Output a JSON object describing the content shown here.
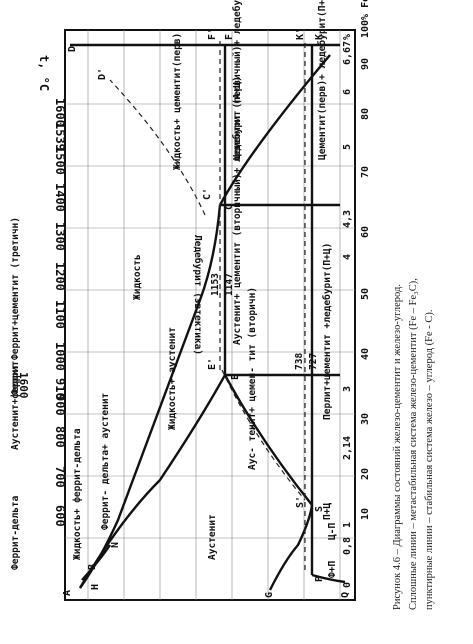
{
  "diagram": {
    "title_axis": "t, °C",
    "x_unit": "%",
    "x_unit_cementite": "100% Fe₃C",
    "temp_ticks": [
      "1600",
      "1539",
      "1500",
      "1400",
      "1300",
      "1200",
      "1100",
      "1000",
      "910",
      "900",
      "800",
      "700",
      "600"
    ],
    "x_ticks_c": [
      "0",
      "0,8",
      "1",
      "2,14",
      "3",
      "4",
      "4,3",
      "5",
      "6",
      "6,67"
    ],
    "x_ticks_fe3c": [
      "10",
      "20",
      "30",
      "40",
      "50",
      "60",
      "70",
      "80",
      "90"
    ],
    "side_labels": [
      "Феррит-дельта",
      "Аустенит+феррит",
      "Феррит",
      "Феррит+цементит (третичн)"
    ],
    "point_labels": [
      "A",
      "B",
      "H",
      "N",
      "D",
      "D'",
      "E",
      "E'",
      "C",
      "C'",
      "F",
      "F'",
      "G",
      "S",
      "S'",
      "P",
      "Q",
      "K",
      "K'"
    ],
    "region_labels": {
      "liquid": "Жидкость",
      "liquid_ferrite_delta": "Жидкость+ феррит-дельта",
      "ferrite_delta_austenite": "Феррит- дельта+ аустенит",
      "liquid_austenite": "Жидкость+ аустенит",
      "liquid_cementite": "Жидкость+ цементит(перв)",
      "austenite": "Аустенит",
      "austenite_cementite_secondary": "Аус- тенит+ цемен- тит (вторичн)",
      "austenite_cementite_ledeburite": "Аустенит+ цементит (вторичный)+ ледебурит (А+Ц)",
      "cementite_ledeburite": "Цементит (первичный)+ ледебурит (А+Ц)",
      "ledeburite_eutectic": "Ледебурит (эвтектика)",
      "ferrite_pearlite": "Ф+П",
      "pearlite_cementite": "П+Ц",
      "pearlite_cementite_ledeburite": "Перлит+цементит +ледебурит(П+Ц)",
      "cementite_ledeburite_pc": "Цементит(перв)+ ледебурит(П+Ц)",
      "pearlite_a": "Ц-П",
      "temp_1153": "1153",
      "temp_1147": "1147",
      "temp_738": "738",
      "temp_727": "727"
    },
    "caption_lines": [
      "Рисунок 4.6 – Диаграммы состояний железо-цементит и железо-углерод.",
      "Сплошные линии – метастабильная система железо-цементит (Fe – Fe₃C),",
      "пунктирные линии – стабильная система железо – углерод (Fe - C)."
    ]
  }
}
